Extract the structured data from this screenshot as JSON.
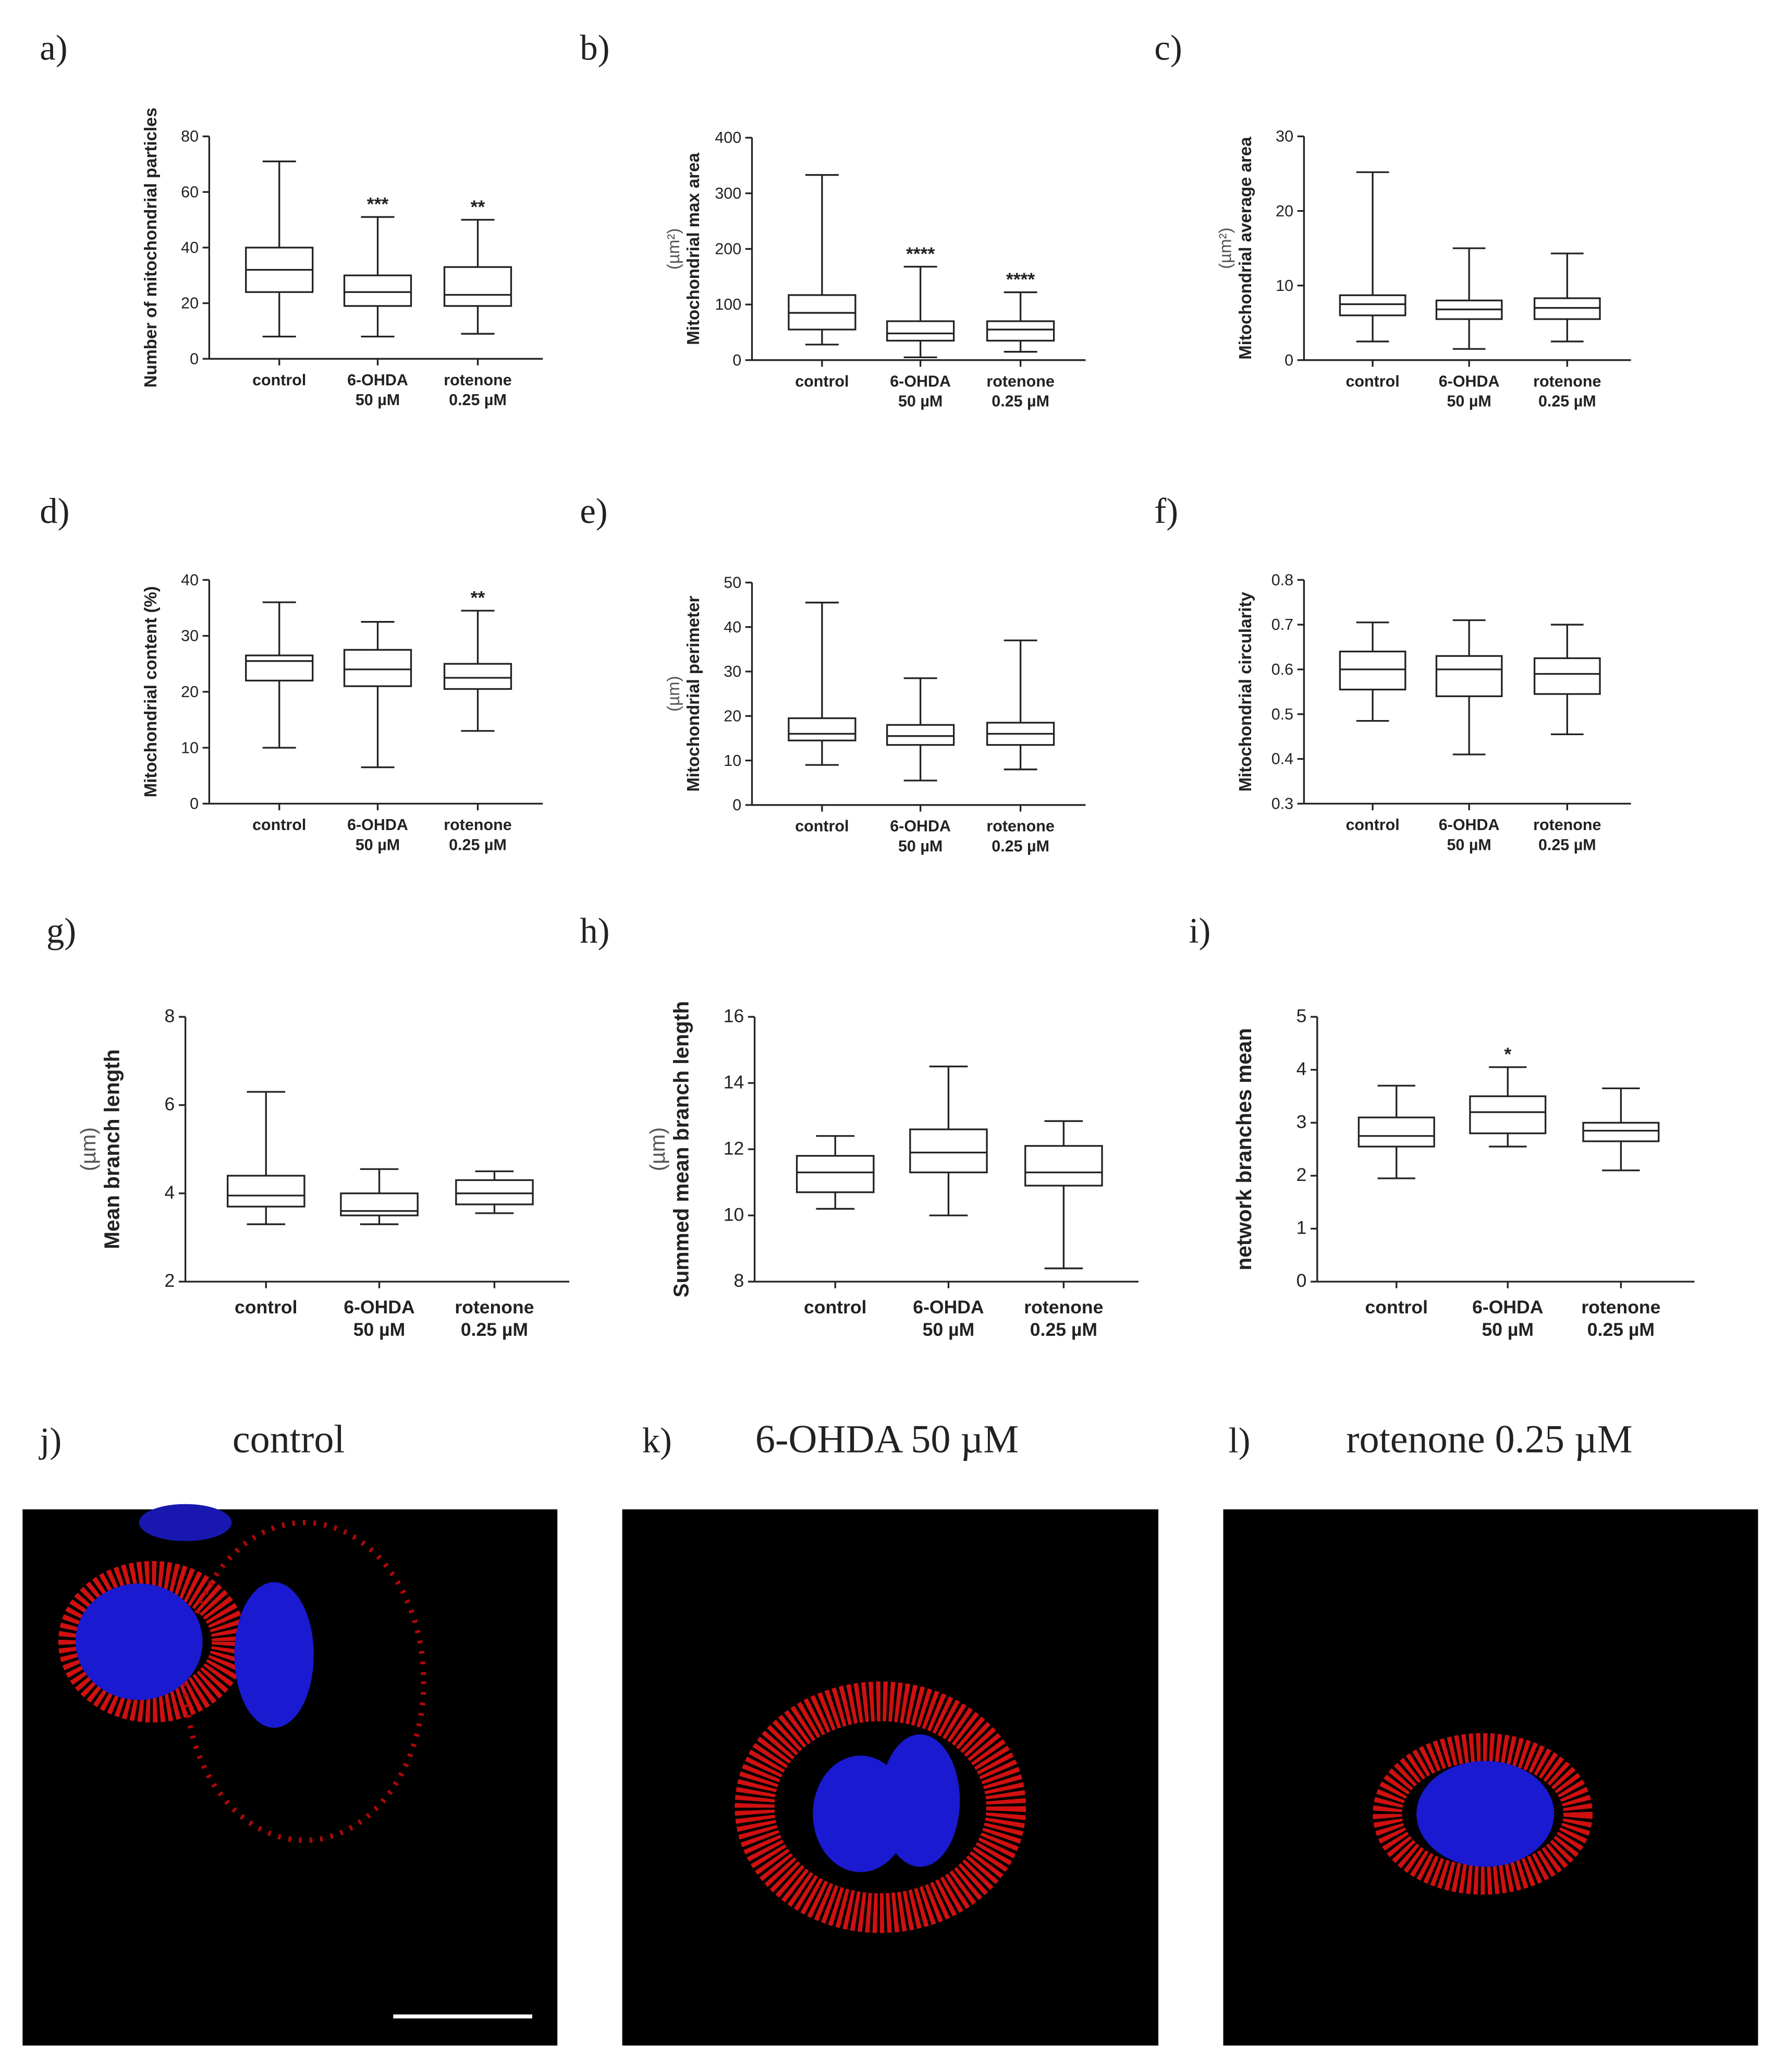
{
  "chart_data": [
    {
      "type": "box",
      "panel": "a)",
      "ylabel": [
        "Number of mitochondrial particles"
      ],
      "categories": [
        [
          "control"
        ],
        [
          "6-OHDA",
          "50 µM"
        ],
        [
          "rotenone",
          "0.25 µM"
        ]
      ],
      "ylim": [
        0,
        80
      ],
      "yticks": [
        0,
        20,
        40,
        60,
        80
      ],
      "boxes": [
        {
          "min": 8,
          "q1": 24,
          "median": 32,
          "q3": 40,
          "max": 71
        },
        {
          "min": 8,
          "q1": 19,
          "median": 24,
          "q3": 30,
          "max": 51
        },
        {
          "min": 9,
          "q1": 19,
          "median": 23,
          "q3": 33,
          "max": 50
        }
      ],
      "significance": [
        null,
        "***",
        "**"
      ]
    },
    {
      "type": "box",
      "panel": "b)",
      "ylabel": [
        "Mitochondrial max area",
        "(µm²)"
      ],
      "categories": [
        [
          "control"
        ],
        [
          "6-OHDA",
          "50 µM"
        ],
        [
          "rotenone",
          "0.25 µM"
        ]
      ],
      "ylim": [
        0,
        400
      ],
      "yticks": [
        0,
        100,
        200,
        300,
        400
      ],
      "boxes": [
        {
          "min": 28,
          "q1": 55,
          "median": 85,
          "q3": 117,
          "max": 333
        },
        {
          "min": 5,
          "q1": 35,
          "median": 48,
          "q3": 70,
          "max": 168
        },
        {
          "min": 15,
          "q1": 35,
          "median": 55,
          "q3": 70,
          "max": 122
        }
      ],
      "significance": [
        null,
        "****",
        "****"
      ]
    },
    {
      "type": "box",
      "panel": "c)",
      "ylabel": [
        "Mitochondrial average area",
        "(µm²)"
      ],
      "categories": [
        [
          "control"
        ],
        [
          "6-OHDA",
          "50 µM"
        ],
        [
          "rotenone",
          "0.25 µM"
        ]
      ],
      "ylim": [
        0,
        30
      ],
      "yticks": [
        0,
        10,
        20,
        30
      ],
      "boxes": [
        {
          "min": 2.5,
          "q1": 6,
          "median": 7.5,
          "q3": 8.7,
          "max": 25.2
        },
        {
          "min": 1.5,
          "q1": 5.5,
          "median": 6.8,
          "q3": 8,
          "max": 15
        },
        {
          "min": 2.5,
          "q1": 5.5,
          "median": 7,
          "q3": 8.3,
          "max": 14.3
        }
      ],
      "significance": [
        null,
        null,
        null
      ]
    },
    {
      "type": "box",
      "panel": "d)",
      "ylabel": [
        "Mitochondrial content (%)"
      ],
      "categories": [
        [
          "control"
        ],
        [
          "6-OHDA",
          "50 µM"
        ],
        [
          "rotenone",
          "0.25 µM"
        ]
      ],
      "ylim": [
        0,
        40
      ],
      "yticks": [
        0,
        10,
        20,
        30,
        40
      ],
      "boxes": [
        {
          "min": 10,
          "q1": 22,
          "median": 25.5,
          "q3": 26.5,
          "max": 36
        },
        {
          "min": 6.5,
          "q1": 21,
          "median": 24,
          "q3": 27.5,
          "max": 32.5
        },
        {
          "min": 13,
          "q1": 20.5,
          "median": 22.5,
          "q3": 25,
          "max": 34.5
        }
      ],
      "significance": [
        null,
        null,
        "**"
      ]
    },
    {
      "type": "box",
      "panel": "e)",
      "ylabel": [
        "Mitochondrial perimeter",
        "(µm)"
      ],
      "categories": [
        [
          "control"
        ],
        [
          "6-OHDA",
          "50 µM"
        ],
        [
          "rotenone",
          "0.25 µM"
        ]
      ],
      "ylim": [
        0,
        50
      ],
      "yticks": [
        0,
        10,
        20,
        30,
        40,
        50
      ],
      "boxes": [
        {
          "min": 9,
          "q1": 14.5,
          "median": 16,
          "q3": 19.5,
          "max": 45.5
        },
        {
          "min": 5.5,
          "q1": 13.5,
          "median": 15.5,
          "q3": 18,
          "max": 28.5
        },
        {
          "min": 8,
          "q1": 13.5,
          "median": 16,
          "q3": 18.5,
          "max": 37
        }
      ],
      "significance": [
        null,
        null,
        null
      ]
    },
    {
      "type": "box",
      "panel": "f)",
      "ylabel": [
        "Mitochondrial circularity"
      ],
      "categories": [
        [
          "control"
        ],
        [
          "6-OHDA",
          "50 µM"
        ],
        [
          "rotenone",
          "0.25 µM"
        ]
      ],
      "ylim": [
        0.3,
        0.8
      ],
      "yticks": [
        0.3,
        0.4,
        0.5,
        0.6,
        0.7,
        0.8
      ],
      "boxes": [
        {
          "min": 0.485,
          "q1": 0.555,
          "median": 0.6,
          "q3": 0.64,
          "max": 0.705
        },
        {
          "min": 0.41,
          "q1": 0.54,
          "median": 0.6,
          "q3": 0.63,
          "max": 0.71
        },
        {
          "min": 0.455,
          "q1": 0.545,
          "median": 0.59,
          "q3": 0.625,
          "max": 0.7
        }
      ],
      "significance": [
        null,
        null,
        null
      ]
    },
    {
      "type": "box",
      "panel": "g)",
      "ylabel": [
        "Mean branch length",
        "(µm)"
      ],
      "categories": [
        [
          "control"
        ],
        [
          "6-OHDA",
          "50 µM"
        ],
        [
          "rotenone",
          "0.25 µM"
        ]
      ],
      "ylim": [
        2,
        8
      ],
      "yticks": [
        2,
        4,
        6,
        8
      ],
      "boxes": [
        {
          "min": 3.3,
          "q1": 3.7,
          "median": 3.95,
          "q3": 4.4,
          "max": 6.3
        },
        {
          "min": 3.3,
          "q1": 3.5,
          "median": 3.6,
          "q3": 4,
          "max": 4.55
        },
        {
          "min": 3.55,
          "q1": 3.75,
          "median": 4,
          "q3": 4.3,
          "max": 4.5
        }
      ],
      "significance": [
        null,
        null,
        null
      ]
    },
    {
      "type": "box",
      "panel": "h)",
      "ylabel": [
        "Summed mean branch length",
        "(µm)"
      ],
      "categories": [
        [
          "control"
        ],
        [
          "6-OHDA",
          "50 µM"
        ],
        [
          "rotenone",
          "0.25 µM"
        ]
      ],
      "ylim": [
        8,
        16
      ],
      "yticks": [
        8,
        10,
        12,
        14,
        16
      ],
      "boxes": [
        {
          "min": 10.2,
          "q1": 10.7,
          "median": 11.3,
          "q3": 11.8,
          "max": 12.4
        },
        {
          "min": 10,
          "q1": 11.3,
          "median": 11.9,
          "q3": 12.6,
          "max": 14.5
        },
        {
          "min": 8.4,
          "q1": 10.9,
          "median": 11.3,
          "q3": 12.1,
          "max": 12.85
        }
      ],
      "significance": [
        null,
        null,
        null
      ]
    },
    {
      "type": "box",
      "panel": "i)",
      "ylabel": [
        "network branches mean"
      ],
      "categories": [
        [
          "control"
        ],
        [
          "6-OHDA",
          "50 µM"
        ],
        [
          "rotenone",
          "0.25 µM"
        ]
      ],
      "ylim": [
        0,
        5
      ],
      "yticks": [
        0,
        1,
        2,
        3,
        4,
        5
      ],
      "boxes": [
        {
          "min": 1.95,
          "q1": 2.55,
          "median": 2.75,
          "q3": 3.1,
          "max": 3.7
        },
        {
          "min": 2.55,
          "q1": 2.8,
          "median": 3.2,
          "q3": 3.5,
          "max": 4.05
        },
        {
          "min": 2.1,
          "q1": 2.65,
          "median": 2.85,
          "q3": 3,
          "max": 3.65
        }
      ],
      "significance": [
        null,
        "*",
        null
      ]
    }
  ],
  "images": [
    {
      "panel": "j)",
      "title": "control"
    },
    {
      "panel": "k)",
      "title": "6-OHDA 50 µM"
    },
    {
      "panel": "l)",
      "title": "rotenone 0.25 µM"
    }
  ]
}
